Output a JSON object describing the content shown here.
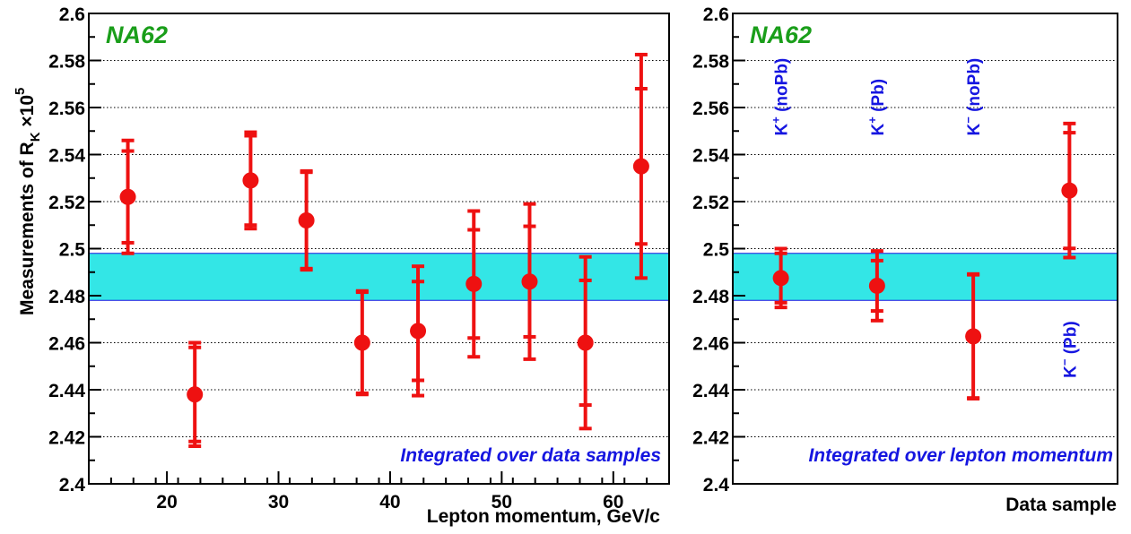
{
  "colors": {
    "points": "#ee1111",
    "band_fill": "#33e6e6",
    "band_edge": "#1515e0",
    "experiment": "#1a9e1a",
    "caption": "#1515e0",
    "grid": "#000000"
  },
  "chart_data": [
    {
      "type": "scatter",
      "experiment_label": "NA62",
      "caption": "Integrated over data samples",
      "xlabel": "Lepton momentum, GeV/c",
      "ylabel": {
        "main": "Measurements of R",
        "sub": "K",
        "times": " ×10",
        "sup": "5"
      },
      "xlim": [
        13,
        65
      ],
      "ylim": [
        2.4,
        2.6
      ],
      "xticks": [
        "20",
        "30",
        "40",
        "50",
        "60"
      ],
      "yticks": [
        "2.4",
        "2.42",
        "2.44",
        "2.46",
        "2.48",
        "2.5",
        "2.52",
        "2.54",
        "2.56",
        "2.58",
        "2.6"
      ],
      "grid": "horizontal dotted",
      "band": {
        "low": 2.478,
        "high": 2.498
      },
      "series": [
        {
          "points": [
            {
              "x": 16.5,
              "y": 2.522,
              "err_stat": 0.0195,
              "err_tot": 0.024
            },
            {
              "x": 22.5,
              "y": 2.438,
              "err_stat": 0.02,
              "err_tot": 0.022
            },
            {
              "x": 27.5,
              "y": 2.529,
              "err_stat": 0.019,
              "err_tot": 0.0205
            },
            {
              "x": 32.5,
              "y": 2.512,
              "err_stat": 0.0205,
              "err_tot": 0.021
            },
            {
              "x": 37.5,
              "y": 2.46,
              "err_stat": 0.0215,
              "err_tot": 0.022
            },
            {
              "x": 42.5,
              "y": 2.465,
              "err_stat": 0.021,
              "err_tot": 0.0275
            },
            {
              "x": 47.5,
              "y": 2.485,
              "err_stat": 0.023,
              "err_tot": 0.031
            },
            {
              "x": 52.5,
              "y": 2.486,
              "err_stat": 0.0235,
              "err_tot": 0.033
            },
            {
              "x": 57.5,
              "y": 2.46,
              "err_stat": 0.0265,
              "err_tot": 0.0365
            },
            {
              "x": 62.5,
              "y": 2.535,
              "err_stat": 0.033,
              "err_tot": 0.0475
            }
          ]
        }
      ]
    },
    {
      "type": "scatter",
      "experiment_label": "NA62",
      "caption": "Integrated over lepton momentum",
      "xlabel": "Data sample",
      "xlim": [
        0,
        4
      ],
      "ylim": [
        2.4,
        2.6
      ],
      "yticks": [
        "2.4",
        "2.42",
        "2.44",
        "2.46",
        "2.48",
        "2.5",
        "2.52",
        "2.54",
        "2.56",
        "2.58",
        "2.6"
      ],
      "grid": "horizontal dotted",
      "band": {
        "low": 2.478,
        "high": 2.498
      },
      "sample_labels": [
        {
          "base": "K",
          "sup": "+",
          "text": " (noPb)"
        },
        {
          "base": "K",
          "sup": "+",
          "text": " (Pb)"
        },
        {
          "base": "K",
          "sup": "−",
          "text": " (noPb)"
        },
        {
          "base": "K",
          "sup": "−",
          "text": " (Pb)"
        }
      ],
      "series": [
        {
          "points": [
            {
              "x": 0.5,
              "y": 2.4875,
              "err_stat": 0.0105,
              "err_tot": 0.0125
            },
            {
              "x": 1.5,
              "y": 2.4842,
              "err_stat": 0.0107,
              "err_tot": 0.0148
            },
            {
              "x": 2.5,
              "y": 2.4627,
              "err_stat": 0.0262,
              "err_tot": 0.0265
            },
            {
              "x": 3.5,
              "y": 2.5247,
              "err_stat": 0.0246,
              "err_tot": 0.0285
            }
          ]
        }
      ]
    }
  ]
}
